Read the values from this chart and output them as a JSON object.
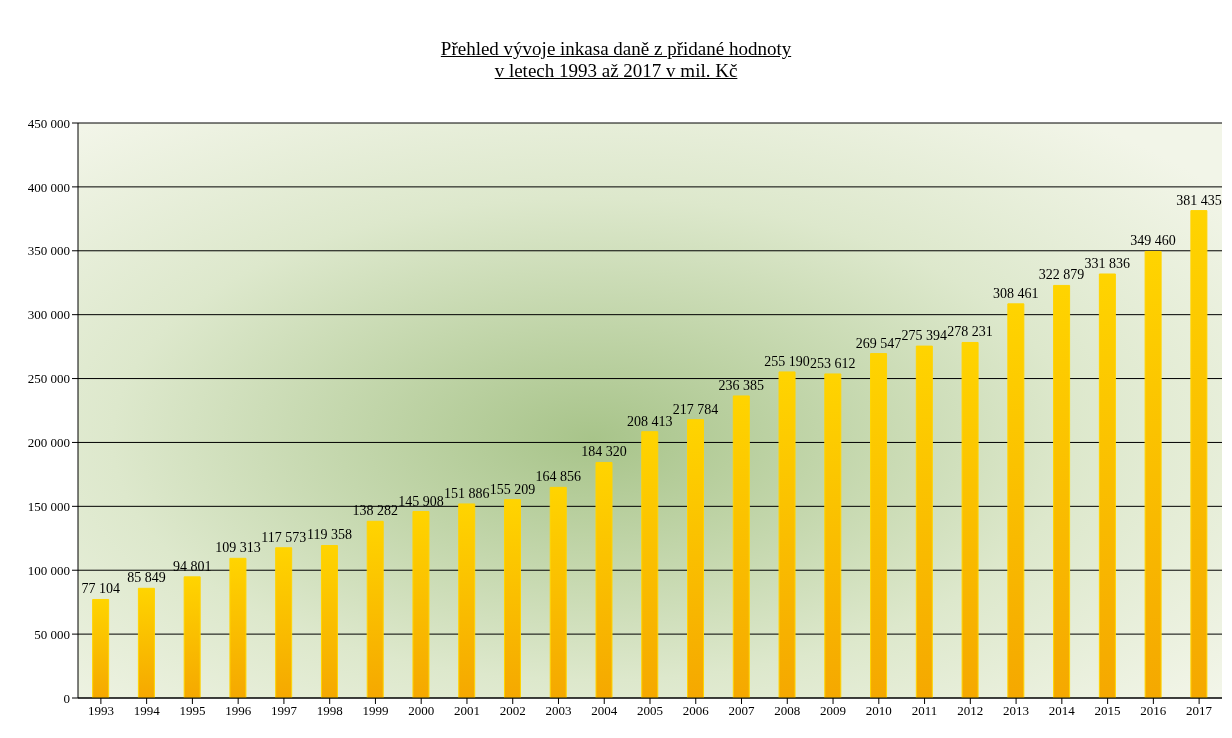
{
  "chart_data": {
    "type": "bar",
    "title": "Přehled vývoje inkasa daně z přidané hodnoty\nv letech 1993 až 2017 v mil. Kč",
    "categories": [
      "1993",
      "1994",
      "1995",
      "1996",
      "1997",
      "1998",
      "1999",
      "2000",
      "2001",
      "2002",
      "2003",
      "2004",
      "2005",
      "2006",
      "2007",
      "2008",
      "2009",
      "2010",
      "2011",
      "2012",
      "2013",
      "2014",
      "2015",
      "2016",
      "2017"
    ],
    "values": [
      77104,
      85849,
      94801,
      109313,
      117573,
      119358,
      138282,
      145908,
      151886,
      155209,
      164856,
      184320,
      208413,
      217784,
      236385,
      255190,
      253612,
      269547,
      275394,
      278231,
      308461,
      322879,
      331836,
      349460,
      381435
    ],
    "value_labels": [
      "77 104",
      "85 849",
      "94 801",
      "109 313",
      "117 573",
      "119 358",
      "138 282",
      "145 908",
      "151 886",
      "155 209",
      "164 856",
      "184 320",
      "208 413",
      "217 784",
      "236 385",
      "255 190",
      "253 612",
      "269 547",
      "275 394",
      "278 231",
      "308 461",
      "322 879",
      "331 836",
      "349 460",
      "381 435"
    ],
    "color": "#ffd400",
    "ylim": [
      0,
      450000
    ],
    "yticks": [
      {
        "value": 0,
        "label": "0"
      },
      {
        "value": 50000,
        "label": "50 000"
      },
      {
        "value": 100000,
        "label": "100 000"
      },
      {
        "value": 150000,
        "label": "150 000"
      },
      {
        "value": 200000,
        "label": "200 000"
      },
      {
        "value": 250000,
        "label": "250 000"
      },
      {
        "value": 300000,
        "label": "300 000"
      },
      {
        "value": 350000,
        "label": "350 000"
      },
      {
        "value": 400000,
        "label": "400 000"
      },
      {
        "value": 450000,
        "label": "450 000"
      }
    ],
    "grid": "y"
  }
}
